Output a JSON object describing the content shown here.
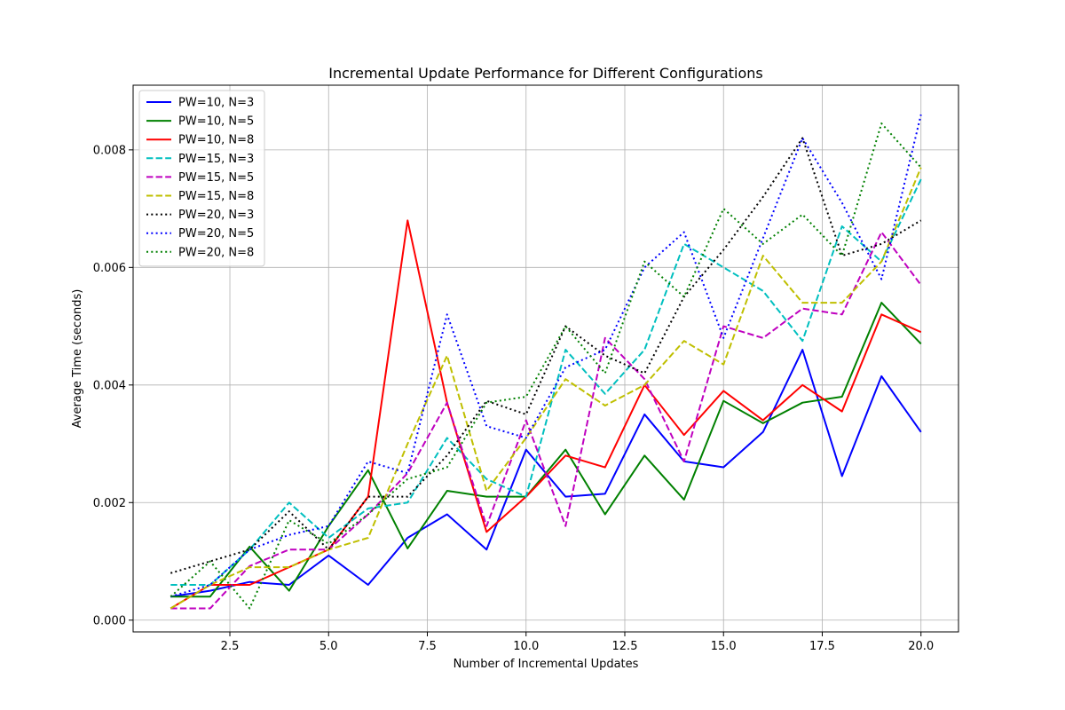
{
  "chart_data": {
    "type": "line",
    "title": "Incremental Update Performance for Different Configurations",
    "xlabel": "Number of Incremental Updates",
    "ylabel": "Average Time (seconds)",
    "xlim": [
      0.05,
      20.95
    ],
    "ylim": [
      -0.0002,
      0.0091
    ],
    "x_ticks": [
      2.5,
      5.0,
      7.5,
      10.0,
      12.5,
      15.0,
      17.5,
      20.0
    ],
    "x_tick_labels": [
      "2.5",
      "5.0",
      "7.5",
      "10.0",
      "12.5",
      "15.0",
      "17.5",
      "20.0"
    ],
    "y_ticks": [
      0.0,
      0.002,
      0.004,
      0.006,
      0.008
    ],
    "y_tick_labels": [
      "0.000",
      "0.002",
      "0.004",
      "0.006",
      "0.008"
    ],
    "grid": true,
    "legend_position": "upper left",
    "x": [
      1,
      2,
      3,
      4,
      5,
      6,
      7,
      8,
      9,
      10,
      11,
      12,
      13,
      14,
      15,
      16,
      17,
      18,
      19,
      20
    ],
    "series": [
      {
        "name": "PW=10, N=3",
        "color": "#0000ff",
        "dash": "solid",
        "values": [
          0.0004,
          0.0005,
          0.00065,
          0.0006,
          0.0011,
          0.0006,
          0.0014,
          0.0018,
          0.0012,
          0.0029,
          0.0021,
          0.00215,
          0.0035,
          0.0027,
          0.0026,
          0.0032,
          0.0046,
          0.00245,
          0.00415,
          0.0032
        ]
      },
      {
        "name": "PW=10, N=5",
        "color": "#008000",
        "dash": "solid",
        "values": [
          0.0004,
          0.0004,
          0.00125,
          0.0005,
          0.0016,
          0.00255,
          0.00122,
          0.0022,
          0.0021,
          0.0021,
          0.0029,
          0.0018,
          0.0028,
          0.00205,
          0.00373,
          0.00335,
          0.0037,
          0.0038,
          0.0054,
          0.0047
        ]
      },
      {
        "name": "PW=10, N=8",
        "color": "#ff0000",
        "dash": "solid",
        "values": [
          0.0002,
          0.0006,
          0.0006,
          0.0009,
          0.0012,
          0.0021,
          0.0068,
          0.0037,
          0.0015,
          0.0021,
          0.0028,
          0.0026,
          0.004,
          0.00315,
          0.0039,
          0.0034,
          0.004,
          0.00355,
          0.0052,
          0.0049
        ]
      },
      {
        "name": "PW=15, N=3",
        "color": "#00bfbf",
        "dash": "dashed",
        "values": [
          0.0006,
          0.0006,
          0.0012,
          0.002,
          0.0014,
          0.0019,
          0.002,
          0.0031,
          0.0024,
          0.0021,
          0.0046,
          0.00385,
          0.0046,
          0.0064,
          0.006,
          0.0056,
          0.00475,
          0.0067,
          0.0061,
          0.0075
        ]
      },
      {
        "name": "PW=15, N=5",
        "color": "#bf00bf",
        "dash": "dashed",
        "values": [
          0.0002,
          0.0002,
          0.00092,
          0.0012,
          0.0012,
          0.0018,
          0.0025,
          0.0037,
          0.0016,
          0.0034,
          0.0016,
          0.0048,
          0.0041,
          0.0027,
          0.005,
          0.0048,
          0.0053,
          0.0052,
          0.0066,
          0.0057
        ]
      },
      {
        "name": "PW=15, N=8",
        "color": "#bfbf00",
        "dash": "dashed",
        "values": [
          0.0002,
          0.0006,
          0.0009,
          0.0009,
          0.0012,
          0.0014,
          0.003,
          0.0045,
          0.0022,
          0.0031,
          0.0041,
          0.00365,
          0.004,
          0.00475,
          0.00435,
          0.0062,
          0.0054,
          0.0054,
          0.0061,
          0.0077
        ]
      },
      {
        "name": "PW=20, N=3",
        "color": "#000000",
        "dash": "dotted",
        "values": [
          0.0008,
          0.001,
          0.0012,
          0.00185,
          0.0012,
          0.0021,
          0.0021,
          0.0028,
          0.00373,
          0.0035,
          0.005,
          0.0045,
          0.0042,
          0.0055,
          0.0063,
          0.0072,
          0.0082,
          0.0062,
          0.0064,
          0.0068
        ]
      },
      {
        "name": "PW=20, N=5",
        "color": "#0000ff",
        "dash": "dotted",
        "values": [
          0.0004,
          0.0006,
          0.0012,
          0.00145,
          0.0016,
          0.0027,
          0.0025,
          0.0052,
          0.0033,
          0.0031,
          0.0043,
          0.0046,
          0.006,
          0.0066,
          0.0048,
          0.0065,
          0.0082,
          0.0071,
          0.0058,
          0.0086
        ]
      },
      {
        "name": "PW=20, N=8",
        "color": "#008000",
        "dash": "dotted",
        "values": [
          0.0004,
          0.001,
          0.0002,
          0.0017,
          0.0013,
          0.0018,
          0.0024,
          0.0026,
          0.0037,
          0.0038,
          0.005,
          0.0042,
          0.0061,
          0.0055,
          0.007,
          0.0064,
          0.0069,
          0.0062,
          0.00845,
          0.0077
        ]
      }
    ]
  }
}
